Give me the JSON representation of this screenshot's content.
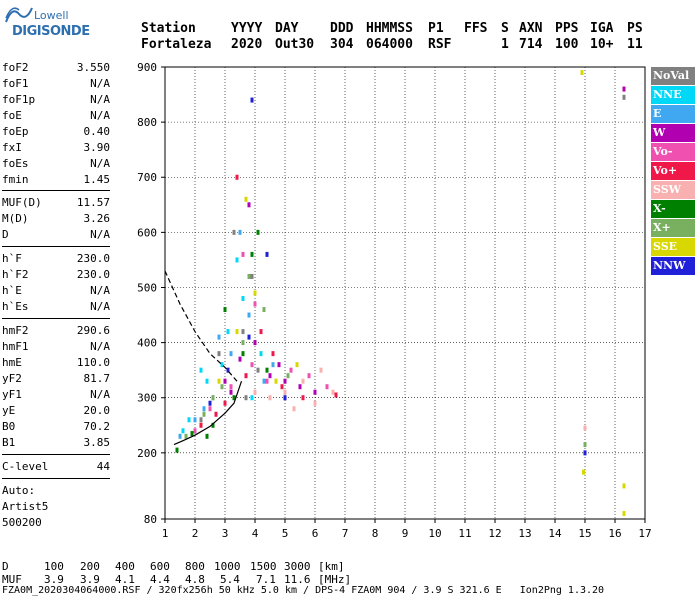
{
  "logo": {
    "line1": "Lowell",
    "line2": "DIGISONDE"
  },
  "header": {
    "labels": [
      "Station",
      "YYYY",
      "DAY",
      "DDD",
      "HHMMSS",
      "P1",
      "FFS",
      "S",
      "AXN",
      "PPS",
      "IGA",
      "PS"
    ],
    "values": [
      "Fortaleza",
      "2020",
      "Out30",
      "304",
      "064000",
      "RSF",
      "",
      "1",
      "714",
      "100",
      "10+",
      "11"
    ]
  },
  "params": {
    "group1": [
      {
        "name": "foF2",
        "value": "3.550"
      },
      {
        "name": "foF1",
        "value": "N/A"
      },
      {
        "name": "foF1p",
        "value": "N/A"
      },
      {
        "name": "foE",
        "value": "N/A"
      },
      {
        "name": "foEp",
        "value": "0.40"
      },
      {
        "name": "fxI",
        "value": "3.90"
      },
      {
        "name": "foEs",
        "value": "N/A"
      },
      {
        "name": "fmin",
        "value": "1.45"
      }
    ],
    "group2": [
      {
        "name": "MUF(D)",
        "value": "11.57"
      },
      {
        "name": "M(D)",
        "value": "3.26"
      },
      {
        "name": "D",
        "value": "N/A"
      }
    ],
    "group3": [
      {
        "name": "h`F",
        "value": "230.0"
      },
      {
        "name": "h`F2",
        "value": "230.0"
      },
      {
        "name": "h`E",
        "value": "N/A"
      },
      {
        "name": "h`Es",
        "value": "N/A"
      }
    ],
    "group4": [
      {
        "name": "hmF2",
        "value": "290.6"
      },
      {
        "name": "hmF1",
        "value": "N/A"
      },
      {
        "name": "hmE",
        "value": "110.0"
      },
      {
        "name": "yF2",
        "value": "81.7"
      },
      {
        "name": "yF1",
        "value": "N/A"
      },
      {
        "name": "yE",
        "value": "20.0"
      },
      {
        "name": "B0",
        "value": "70.2"
      },
      {
        "name": "B1",
        "value": "3.85"
      }
    ],
    "clevel": {
      "name": "C-level",
      "value": "44"
    },
    "auto": [
      "Auto:",
      "Artist5",
      "500200"
    ]
  },
  "legend": [
    {
      "label": "NoVal",
      "color": "#808080"
    },
    {
      "label": "NNE",
      "color": "#00d8f8"
    },
    {
      "label": "E",
      "color": "#40a8f0"
    },
    {
      "label": "W",
      "color": "#b000b0"
    },
    {
      "label": "Vo-",
      "color": "#f050b0"
    },
    {
      "label": "Vo+",
      "color": "#f01848"
    },
    {
      "label": "SSW",
      "color": "#f8b0b0"
    },
    {
      "label": "X-",
      "color": "#008000"
    },
    {
      "label": "X+",
      "color": "#78b060"
    },
    {
      "label": "SSE",
      "color": "#d8d800"
    },
    {
      "label": "NNW",
      "color": "#2020d8"
    }
  ],
  "muf_table": {
    "d_label": "D",
    "d_values": [
      "100",
      "200",
      "400",
      "600",
      "800",
      "1000",
      "1500",
      "3000"
    ],
    "d_unit": "[km]",
    "muf_label": "MUF",
    "muf_values": [
      "3.9",
      "3.9",
      "4.1",
      "4.4",
      "4.8",
      "5.4",
      "7.1",
      "11.6"
    ],
    "muf_unit": "[MHz]"
  },
  "footer": "FZA0M_2020304064000.RSF / 320fx256h 50 kHz 5.0 km / DPS-4 FZA0M 904 / 3.9 S 321.6 E   Ion2Png 1.3.20",
  "chart_data": {
    "type": "scatter",
    "title": "",
    "xlabel": "",
    "ylabel": "",
    "xlim": [
      1,
      17
    ],
    "ylim": [
      80,
      900
    ],
    "xticks": [
      1,
      2,
      3,
      4,
      5,
      6,
      7,
      8,
      9,
      10,
      11,
      12,
      13,
      14,
      15,
      16,
      17
    ],
    "yticks": [
      80,
      200,
      300,
      400,
      500,
      600,
      700,
      800,
      900
    ],
    "grid": true,
    "series": [
      {
        "name": "NoVal",
        "color": "#808080",
        "points": [
          [
            3.6,
            420
          ],
          [
            3.9,
            520
          ],
          [
            2.8,
            380
          ],
          [
            4.1,
            350
          ],
          [
            3.3,
            600
          ],
          [
            16.3,
            845
          ],
          [
            3.7,
            300
          ],
          [
            2.2,
            260
          ]
        ]
      },
      {
        "name": "NNE",
        "color": "#00d8f8",
        "points": [
          [
            1.8,
            260
          ],
          [
            2.4,
            330
          ],
          [
            3.1,
            420
          ],
          [
            3.6,
            480
          ],
          [
            2.9,
            360
          ],
          [
            3.9,
            300
          ],
          [
            2.2,
            350
          ],
          [
            4.2,
            380
          ],
          [
            3.4,
            550
          ],
          [
            1.6,
            240
          ]
        ]
      },
      {
        "name": "E",
        "color": "#40a8f0",
        "points": [
          [
            1.5,
            230
          ],
          [
            2.0,
            260
          ],
          [
            2.6,
            300
          ],
          [
            3.2,
            380
          ],
          [
            3.8,
            450
          ],
          [
            4.3,
            330
          ],
          [
            2.3,
            280
          ],
          [
            3.5,
            600
          ],
          [
            4.6,
            360
          ],
          [
            2.8,
            410
          ]
        ]
      },
      {
        "name": "W",
        "color": "#b000b0",
        "points": [
          [
            3.0,
            330
          ],
          [
            3.5,
            370
          ],
          [
            4.0,
            400
          ],
          [
            4.5,
            340
          ],
          [
            5.0,
            330
          ],
          [
            5.5,
            320
          ],
          [
            3.8,
            650
          ],
          [
            4.8,
            360
          ],
          [
            6.0,
            310
          ],
          [
            3.2,
            310
          ],
          [
            16.3,
            860
          ]
        ]
      },
      {
        "name": "Vo-",
        "color": "#f050b0",
        "points": [
          [
            2.5,
            280
          ],
          [
            3.2,
            320
          ],
          [
            3.9,
            360
          ],
          [
            4.4,
            330
          ],
          [
            5.2,
            350
          ],
          [
            5.8,
            340
          ],
          [
            6.4,
            320
          ],
          [
            4.0,
            470
          ],
          [
            3.6,
            560
          ],
          [
            2.0,
            240
          ]
        ]
      },
      {
        "name": "Vo+",
        "color": "#f01848",
        "points": [
          [
            2.2,
            250
          ],
          [
            3.0,
            290
          ],
          [
            3.7,
            340
          ],
          [
            4.2,
            420
          ],
          [
            4.9,
            320
          ],
          [
            5.6,
            300
          ],
          [
            6.7,
            305
          ],
          [
            3.4,
            700
          ],
          [
            2.7,
            270
          ],
          [
            4.6,
            380
          ]
        ]
      },
      {
        "name": "SSW",
        "color": "#f8b0b0",
        "points": [
          [
            5.0,
            310
          ],
          [
            5.6,
            330
          ],
          [
            6.2,
            350
          ],
          [
            6.6,
            310
          ],
          [
            4.5,
            300
          ],
          [
            5.3,
            280
          ],
          [
            6.0,
            290
          ],
          [
            4.0,
            310
          ],
          [
            15.0,
            245
          ]
        ]
      },
      {
        "name": "X-",
        "color": "#008000",
        "points": [
          [
            1.4,
            205
          ],
          [
            1.9,
            235
          ],
          [
            2.6,
            250
          ],
          [
            3.3,
            300
          ],
          [
            3.9,
            560
          ],
          [
            4.1,
            600
          ],
          [
            3.6,
            380
          ],
          [
            2.4,
            230
          ],
          [
            4.4,
            350
          ],
          [
            3.0,
            460
          ]
        ]
      },
      {
        "name": "X+",
        "color": "#78b060",
        "points": [
          [
            1.7,
            230
          ],
          [
            2.3,
            270
          ],
          [
            2.9,
            320
          ],
          [
            3.6,
            400
          ],
          [
            4.3,
            460
          ],
          [
            3.8,
            520
          ],
          [
            5.1,
            340
          ],
          [
            2.6,
            300
          ],
          [
            15.0,
            215
          ]
        ]
      },
      {
        "name": "SSE",
        "color": "#d8d800",
        "points": [
          [
            2.8,
            330
          ],
          [
            3.4,
            420
          ],
          [
            4.0,
            490
          ],
          [
            3.7,
            660
          ],
          [
            4.7,
            330
          ],
          [
            5.4,
            360
          ],
          [
            14.9,
            890
          ],
          [
            14.95,
            165
          ],
          [
            16.3,
            90
          ],
          [
            16.3,
            140
          ]
        ]
      },
      {
        "name": "NNW",
        "color": "#2020d8",
        "points": [
          [
            2.5,
            290
          ],
          [
            3.1,
            350
          ],
          [
            3.8,
            410
          ],
          [
            4.4,
            560
          ],
          [
            3.9,
            840
          ],
          [
            5.0,
            300
          ],
          [
            15.0,
            200
          ]
        ]
      }
    ],
    "virtual_height_curve": {
      "x": [
        1.3,
        1.6,
        2.0,
        2.5,
        3.0,
        3.3,
        3.55
      ],
      "y": [
        215,
        222,
        232,
        248,
        272,
        290,
        330
      ]
    },
    "true_height_curve": {
      "x": [
        1.0,
        1.5,
        2.0,
        2.5,
        3.0,
        3.4
      ],
      "y": [
        530,
        470,
        420,
        380,
        355,
        330
      ]
    }
  }
}
